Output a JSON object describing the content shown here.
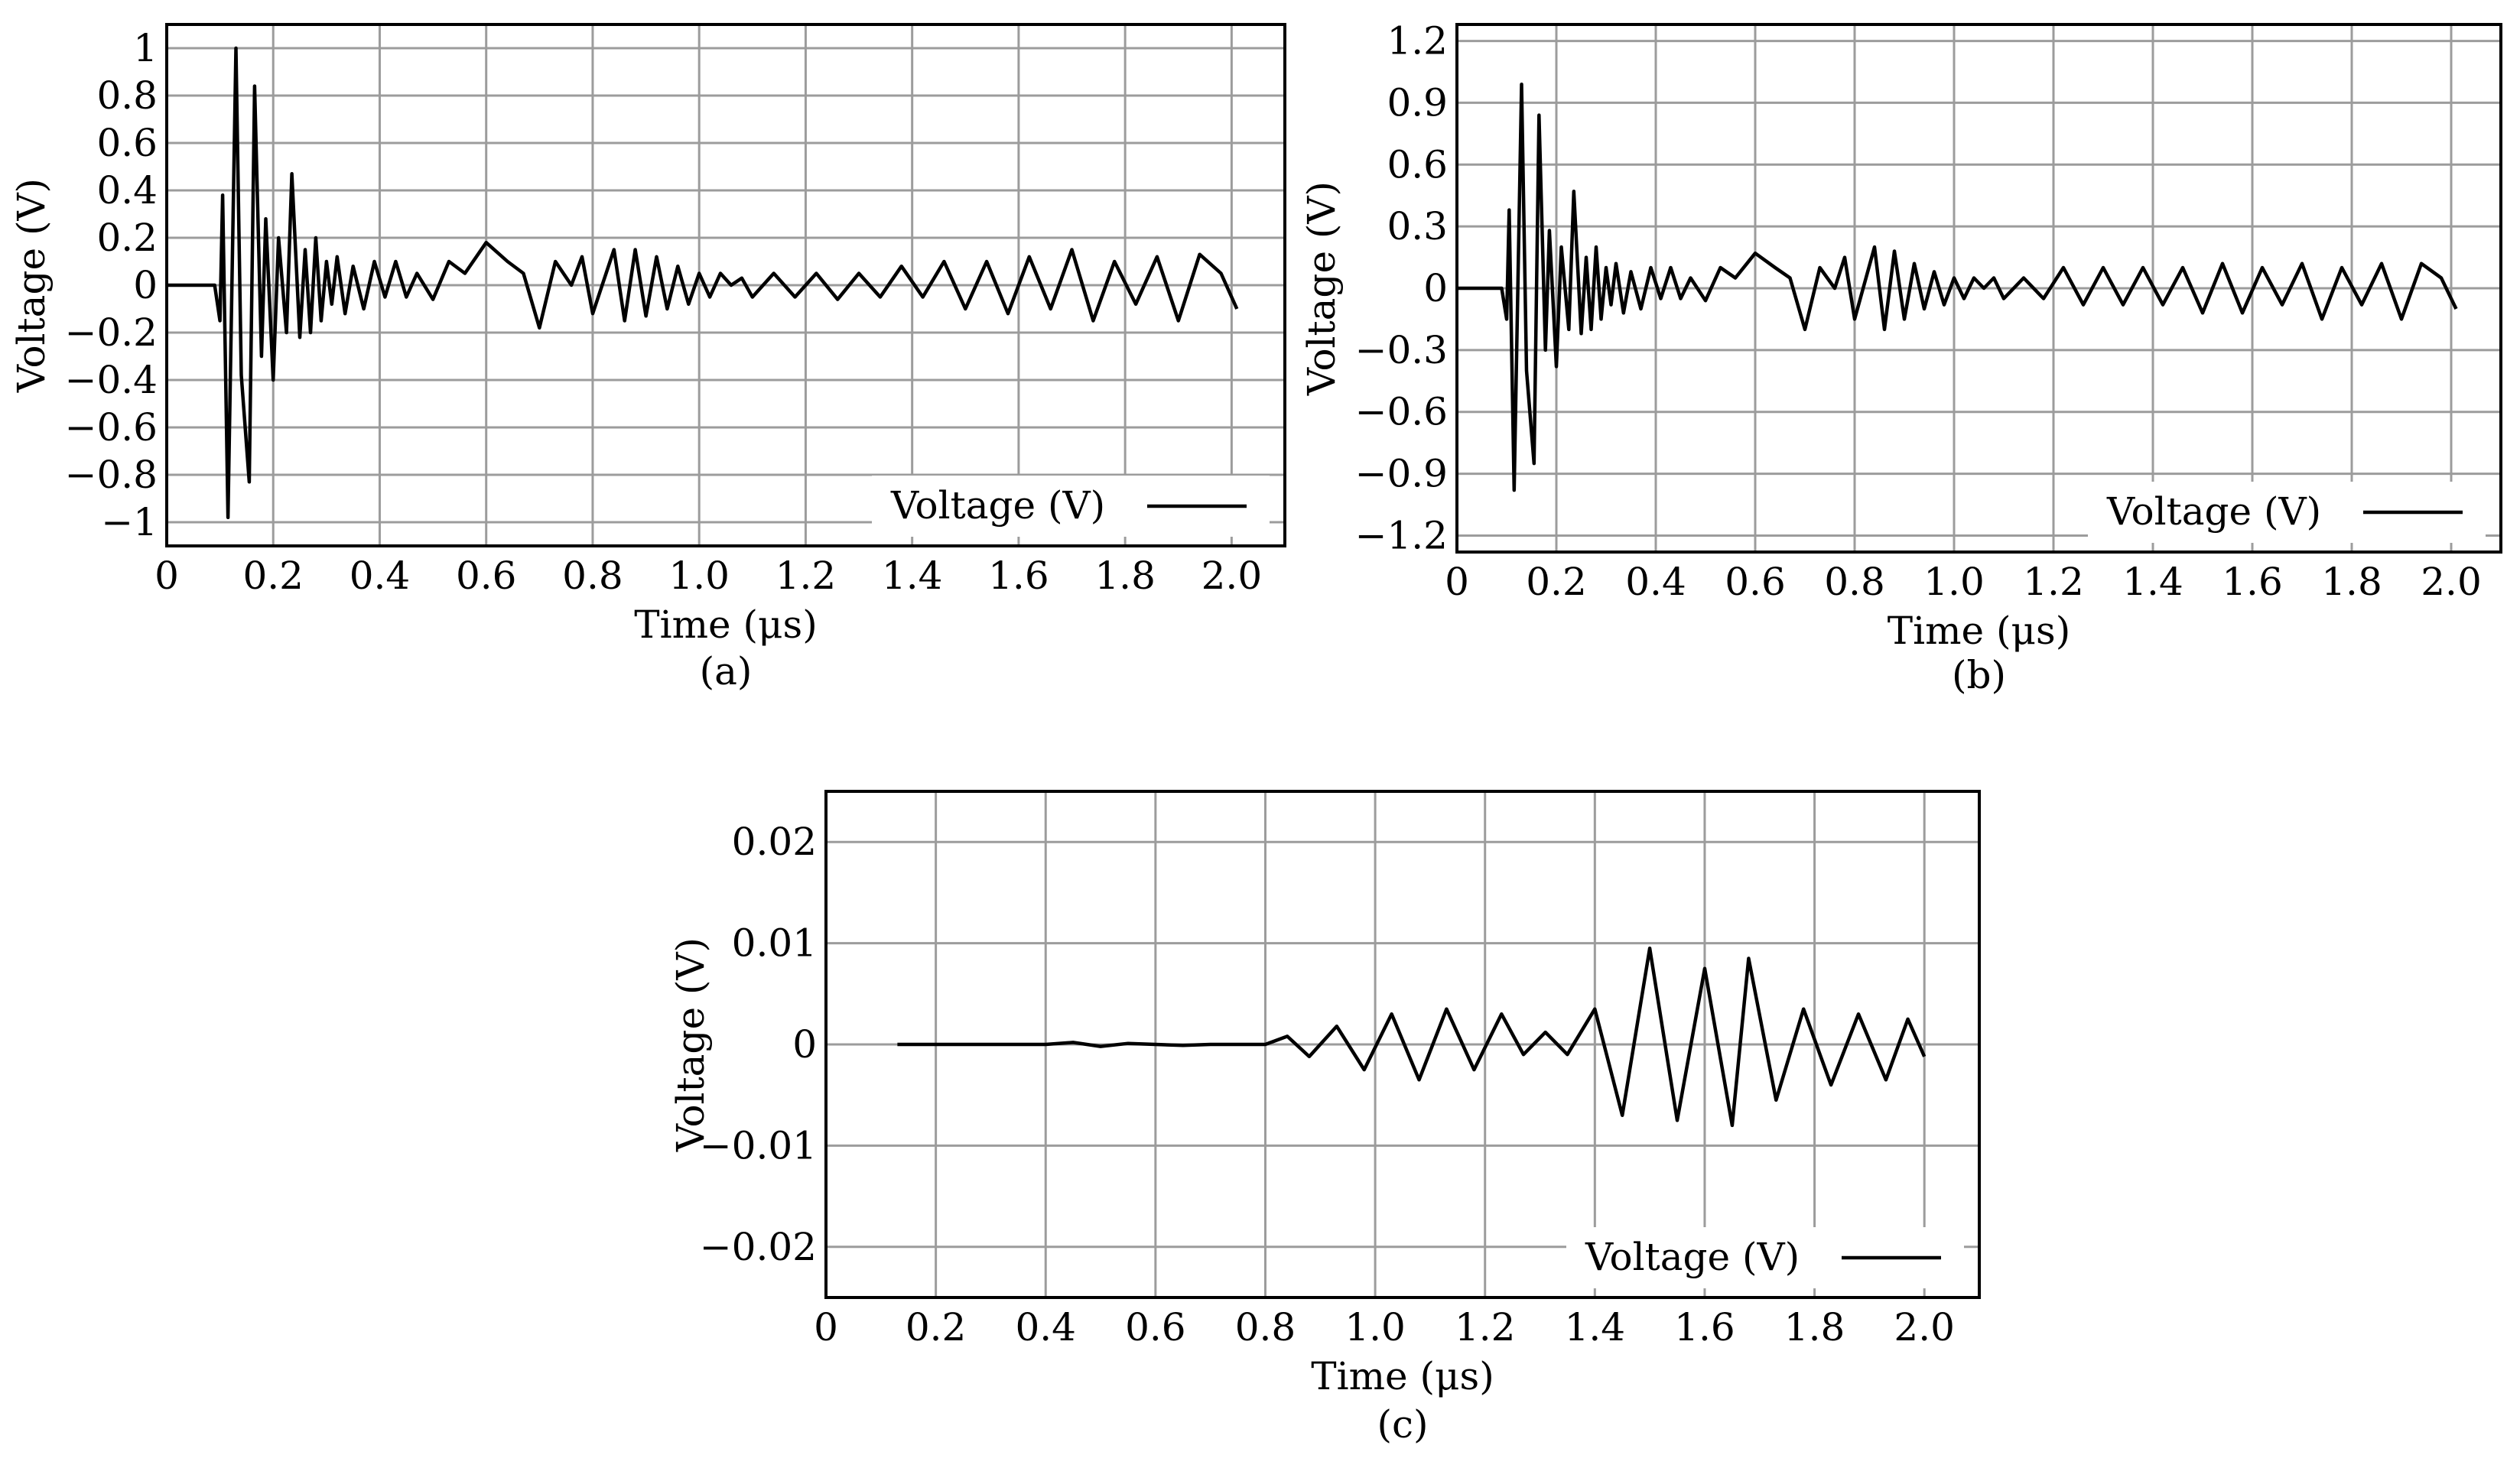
{
  "chart_data": [
    {
      "panel_label": "(a)",
      "type": "line",
      "xlabel": "Time (μs)",
      "ylabel": "Voltage (V)",
      "xlim": [
        0,
        2.1
      ],
      "ylim": [
        -1.1,
        1.1
      ],
      "xticks": [
        0,
        0.2,
        0.4,
        0.6,
        0.8,
        1.0,
        1.2,
        1.4,
        1.6,
        1.8,
        2.0
      ],
      "xtick_labels": [
        "0",
        "0.2",
        "0.4",
        "0.6",
        "0.8",
        "1.0",
        "1.2",
        "1.4",
        "1.6",
        "1.8",
        "2.0"
      ],
      "yticks": [
        1,
        0.8,
        0.6,
        0.4,
        0.2,
        0,
        -0.2,
        -0.4,
        -0.6,
        -0.8,
        -1
      ],
      "ytick_labels": [
        "1",
        "0.8",
        "0.6",
        "0.4",
        "0.2",
        "0",
        "−0.2",
        "−0.4",
        "−0.6",
        "−0.8",
        "−1"
      ],
      "grid": true,
      "legend_position": "bottom-right",
      "series": [
        {
          "name": "Voltage (V)",
          "color": "#000000",
          "x": [
            0,
            0.09,
            0.1,
            0.105,
            0.115,
            0.13,
            0.14,
            0.155,
            0.165,
            0.178,
            0.186,
            0.2,
            0.21,
            0.225,
            0.235,
            0.25,
            0.26,
            0.27,
            0.28,
            0.29,
            0.3,
            0.31,
            0.32,
            0.335,
            0.35,
            0.37,
            0.39,
            0.41,
            0.43,
            0.45,
            0.47,
            0.5,
            0.53,
            0.56,
            0.6,
            0.64,
            0.67,
            0.7,
            0.73,
            0.76,
            0.78,
            0.8,
            0.84,
            0.86,
            0.88,
            0.9,
            0.92,
            0.94,
            0.96,
            0.98,
            1.0,
            1.02,
            1.04,
            1.06,
            1.08,
            1.1,
            1.14,
            1.18,
            1.22,
            1.26,
            1.3,
            1.34,
            1.38,
            1.42,
            1.46,
            1.5,
            1.54,
            1.58,
            1.62,
            1.66,
            1.7,
            1.74,
            1.78,
            1.82,
            1.86,
            1.9,
            1.94,
            1.98,
            2.01
          ],
          "y": [
            0,
            0,
            -0.15,
            0.38,
            -0.98,
            1.0,
            -0.38,
            -0.83,
            0.84,
            -0.3,
            0.28,
            -0.4,
            0.2,
            -0.2,
            0.47,
            -0.22,
            0.15,
            -0.2,
            0.2,
            -0.15,
            0.1,
            -0.08,
            0.12,
            -0.12,
            0.08,
            -0.1,
            0.1,
            -0.05,
            0.1,
            -0.05,
            0.05,
            -0.06,
            0.1,
            0.05,
            0.18,
            0.1,
            0.05,
            -0.18,
            0.1,
            0.0,
            0.12,
            -0.12,
            0.15,
            -0.15,
            0.15,
            -0.13,
            0.12,
            -0.1,
            0.08,
            -0.08,
            0.05,
            -0.05,
            0.05,
            0.0,
            0.03,
            -0.05,
            0.05,
            -0.05,
            0.05,
            -0.06,
            0.05,
            -0.05,
            0.08,
            -0.05,
            0.1,
            -0.1,
            0.1,
            -0.12,
            0.12,
            -0.1,
            0.15,
            -0.15,
            0.1,
            -0.08,
            0.12,
            -0.15,
            0.13,
            0.05,
            -0.1
          ]
        }
      ]
    },
    {
      "panel_label": "(b)",
      "type": "line",
      "xlabel": "Time (μs)",
      "ylabel": "Voltage (V)",
      "xlim": [
        0,
        2.1
      ],
      "ylim": [
        -1.28,
        1.28
      ],
      "xticks": [
        0,
        0.2,
        0.4,
        0.6,
        0.8,
        1.0,
        1.2,
        1.4,
        1.6,
        1.8,
        2.0
      ],
      "xtick_labels": [
        "0",
        "0.2",
        "0.4",
        "0.6",
        "0.8",
        "1.0",
        "1.2",
        "1.4",
        "1.6",
        "1.8",
        "2.0"
      ],
      "yticks": [
        1.2,
        0.9,
        0.6,
        0.3,
        0,
        -0.3,
        -0.6,
        -0.9,
        -1.2
      ],
      "ytick_labels": [
        "1.2",
        "0.9",
        "0.6",
        "0.3",
        "0",
        "−0.3",
        "−0.6",
        "−0.9",
        "−1.2"
      ],
      "grid": true,
      "legend_position": "bottom-right",
      "series": [
        {
          "name": "Voltage (V)",
          "color": "#000000",
          "x": [
            0,
            0.09,
            0.1,
            0.105,
            0.115,
            0.13,
            0.14,
            0.155,
            0.165,
            0.178,
            0.186,
            0.2,
            0.21,
            0.225,
            0.235,
            0.25,
            0.26,
            0.27,
            0.28,
            0.29,
            0.3,
            0.31,
            0.32,
            0.335,
            0.35,
            0.37,
            0.39,
            0.41,
            0.43,
            0.45,
            0.47,
            0.5,
            0.53,
            0.56,
            0.6,
            0.64,
            0.67,
            0.7,
            0.73,
            0.76,
            0.78,
            0.8,
            0.84,
            0.86,
            0.88,
            0.9,
            0.92,
            0.94,
            0.96,
            0.98,
            1.0,
            1.02,
            1.04,
            1.06,
            1.08,
            1.1,
            1.14,
            1.18,
            1.22,
            1.26,
            1.3,
            1.34,
            1.38,
            1.42,
            1.46,
            1.5,
            1.54,
            1.58,
            1.62,
            1.66,
            1.7,
            1.74,
            1.78,
            1.82,
            1.86,
            1.9,
            1.94,
            1.98,
            2.01
          ],
          "y": [
            0,
            0,
            -0.15,
            0.38,
            -0.98,
            0.99,
            -0.4,
            -0.85,
            0.84,
            -0.3,
            0.28,
            -0.38,
            0.2,
            -0.2,
            0.47,
            -0.22,
            0.15,
            -0.2,
            0.2,
            -0.15,
            0.1,
            -0.08,
            0.12,
            -0.12,
            0.08,
            -0.1,
            0.1,
            -0.05,
            0.1,
            -0.05,
            0.05,
            -0.06,
            0.1,
            0.05,
            0.17,
            0.1,
            0.05,
            -0.2,
            0.1,
            0.0,
            0.15,
            -0.15,
            0.2,
            -0.2,
            0.18,
            -0.15,
            0.12,
            -0.1,
            0.08,
            -0.08,
            0.05,
            -0.05,
            0.05,
            0.0,
            0.05,
            -0.05,
            0.05,
            -0.05,
            0.1,
            -0.08,
            0.1,
            -0.08,
            0.1,
            -0.08,
            0.1,
            -0.12,
            0.12,
            -0.12,
            0.1,
            -0.08,
            0.12,
            -0.15,
            0.1,
            -0.08,
            0.12,
            -0.15,
            0.12,
            0.05,
            -0.1
          ]
        }
      ]
    },
    {
      "panel_label": "(c)",
      "type": "line",
      "xlabel": "Time (μs)",
      "ylabel": "Voltage (V)",
      "xlim": [
        0,
        2.1
      ],
      "ylim": [
        -0.025,
        0.025
      ],
      "xticks": [
        0,
        0.2,
        0.4,
        0.6,
        0.8,
        1.0,
        1.2,
        1.4,
        1.6,
        1.8,
        2.0
      ],
      "xtick_labels": [
        "0",
        "0.2",
        "0.4",
        "0.6",
        "0.8",
        "1.0",
        "1.2",
        "1.4",
        "1.6",
        "1.8",
        "2.0"
      ],
      "yticks": [
        0.02,
        0.01,
        0,
        -0.01,
        -0.02
      ],
      "ytick_labels": [
        "0.02",
        "0.01",
        "0",
        "−0.01",
        "−0.02"
      ],
      "grid": true,
      "legend_position": "bottom-right",
      "series": [
        {
          "name": "Voltage (V)",
          "color": "#000000",
          "x": [
            0.13,
            0.2,
            0.3,
            0.4,
            0.45,
            0.5,
            0.55,
            0.6,
            0.65,
            0.7,
            0.75,
            0.8,
            0.84,
            0.88,
            0.93,
            0.98,
            1.03,
            1.08,
            1.13,
            1.18,
            1.23,
            1.27,
            1.31,
            1.35,
            1.4,
            1.45,
            1.5,
            1.55,
            1.6,
            1.65,
            1.68,
            1.73,
            1.78,
            1.83,
            1.88,
            1.93,
            1.97,
            2.0
          ],
          "y": [
            0,
            0,
            0,
            0,
            0.0002,
            -0.0002,
            0.0001,
            0,
            -0.0001,
            0,
            0,
            0,
            0.0008,
            -0.0012,
            0.0018,
            -0.0025,
            0.003,
            -0.0035,
            0.0035,
            -0.0025,
            0.003,
            -0.001,
            0.0012,
            -0.001,
            0.0035,
            -0.007,
            0.0095,
            -0.0075,
            0.0075,
            -0.008,
            0.0085,
            -0.0055,
            0.0035,
            -0.004,
            0.003,
            -0.0035,
            0.0025,
            -0.0012
          ]
        }
      ]
    }
  ]
}
